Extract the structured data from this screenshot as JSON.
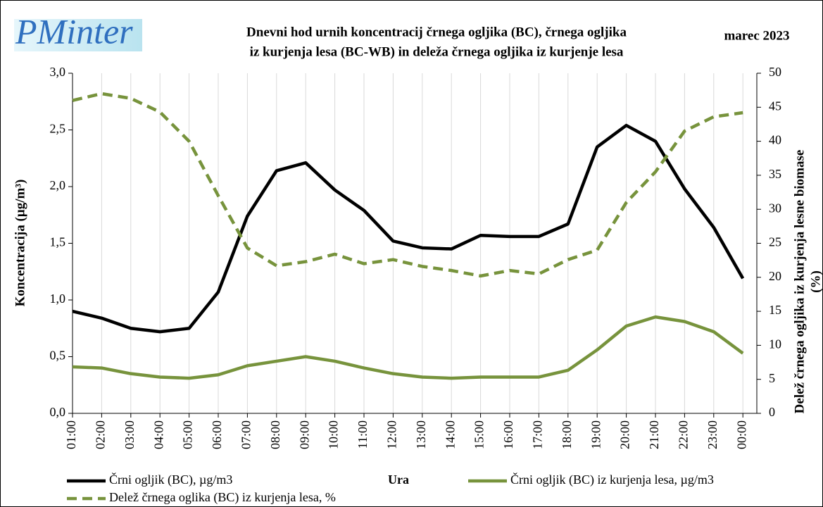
{
  "logo": "PMinter",
  "chart_data": {
    "type": "line",
    "title": [
      "Dnevni hod urnih koncentracij črnega ogljika (BC), črnega ogljika",
      "iz kurjenja lesa (BC-WB) in deleža črnega ogljika iz kurjenje lesa"
    ],
    "subtitle": "marec 2023",
    "x_label": "Ura",
    "y_label": "Koncentracija  (µg/m³)",
    "y2_label": [
      "Delež črnega ogljika iz kurjenja lesne biomase",
      "(%)"
    ],
    "categories": [
      "01:00",
      "02:00",
      "03:00",
      "04:00",
      "05:00",
      "06:00",
      "07:00",
      "08:00",
      "09:00",
      "10:00",
      "11:00",
      "12:00",
      "13:00",
      "14:00",
      "15:00",
      "16:00",
      "17:00",
      "18:00",
      "19:00",
      "20:00",
      "21:00",
      "22:00",
      "23:00",
      "00:00"
    ],
    "ylim": [
      0,
      3
    ],
    "yticks": [
      {
        "value": 0,
        "label": "0,0"
      },
      {
        "value": 0.5,
        "label": "0,5"
      },
      {
        "value": 1,
        "label": "1,0"
      },
      {
        "value": 1.5,
        "label": "1,5"
      },
      {
        "value": 2,
        "label": "2,0"
      },
      {
        "value": 2.5,
        "label": "2,5"
      },
      {
        "value": 3,
        "label": "3,0"
      }
    ],
    "y2lim": [
      0,
      50
    ],
    "y2ticks": [
      0,
      5,
      10,
      15,
      20,
      25,
      30,
      35,
      40,
      45,
      50
    ],
    "grid": true,
    "series": [
      {
        "name": "Črni ogljik (BC), µg/m3",
        "color": "#000000",
        "line_style": "solid",
        "values": [
          0.9,
          0.84,
          0.75,
          0.72,
          0.75,
          1.07,
          1.74,
          2.14,
          2.21,
          1.97,
          1.79,
          1.52,
          1.46,
          1.45,
          1.57,
          1.56,
          1.56,
          1.67,
          2.35,
          2.54,
          2.4,
          1.98,
          1.64,
          1.19
        ]
      },
      {
        "name": "Črni ogljik (BC) iz kurjenja lesa, µg/m3",
        "color": "#77933c",
        "line_style": "solid",
        "values": [
          0.41,
          0.4,
          0.35,
          0.32,
          0.31,
          0.34,
          0.42,
          0.46,
          0.5,
          0.46,
          0.4,
          0.35,
          0.32,
          0.31,
          0.32,
          0.32,
          0.32,
          0.38,
          0.56,
          0.77,
          0.85,
          0.81,
          0.72,
          0.53
        ]
      },
      {
        "name": "Delež črnega oglika (BC) iz kurjenja lesa, %",
        "color": "#77933c",
        "line_style": "dashed",
        "axis": "y2",
        "values": [
          46,
          47,
          46.3,
          44.3,
          40,
          32,
          24.3,
          21.7,
          22.3,
          23.4,
          22,
          22.6,
          21.6,
          21,
          20.2,
          21,
          20.5,
          22.6,
          24,
          31,
          35.5,
          41.5,
          43.6,
          44.2
        ]
      }
    ]
  }
}
